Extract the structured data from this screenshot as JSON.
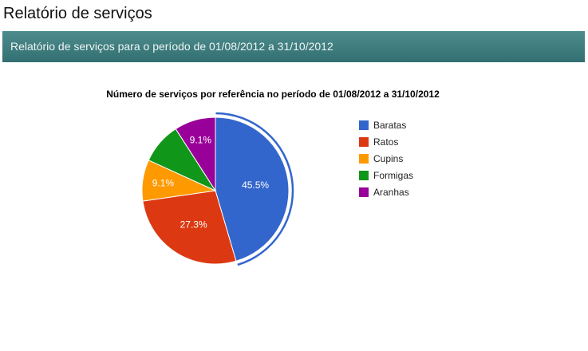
{
  "page": {
    "title": "Relatório de serviços",
    "banner": "Relatório de serviços para o período de 01/08/2012 a 31/10/2012"
  },
  "chart_data": {
    "type": "pie",
    "title": "Número de serviços por referência no período de 01/08/2012 a 31/10/2012",
    "categories": [
      "Baratas",
      "Ratos",
      "Cupins",
      "Formigas",
      "Aranhas"
    ],
    "values": [
      5,
      3,
      1,
      1,
      1
    ],
    "percent_labels": [
      "45.5%",
      "27.3%",
      "9.1%",
      "",
      "9.1%"
    ],
    "colors": [
      "#3366cc",
      "#dc3912",
      "#ff9900",
      "#109618",
      "#990099"
    ],
    "legend_position": "right",
    "highlighted": "Baratas"
  }
}
